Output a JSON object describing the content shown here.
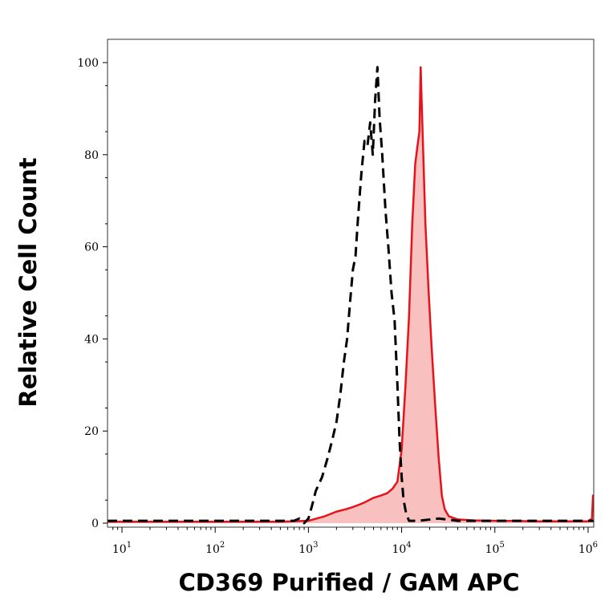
{
  "chart_data": {
    "type": "area",
    "title": "",
    "xlabel": "CD369 Purified / GAM APC",
    "ylabel": "Relative Cell Count",
    "x_scale": "log",
    "xlim": [
      7,
      1150000
    ],
    "ylim": [
      0,
      100
    ],
    "x_ticks": [
      {
        "value": 10,
        "base": "10",
        "exp": "1"
      },
      {
        "value": 100,
        "base": "10",
        "exp": "2"
      },
      {
        "value": 1000,
        "base": "10",
        "exp": "3"
      },
      {
        "value": 10000,
        "base": "10",
        "exp": "4"
      },
      {
        "value": 100000,
        "base": "10",
        "exp": "5"
      },
      {
        "value": 1000000,
        "base": "10",
        "exp": "6"
      }
    ],
    "y_ticks": [
      {
        "value": 0,
        "label": "0"
      },
      {
        "value": 20,
        "label": "20"
      },
      {
        "value": 40,
        "label": "40"
      },
      {
        "value": 60,
        "label": "60"
      },
      {
        "value": 80,
        "label": "80"
      },
      {
        "value": 100,
        "label": "100"
      }
    ],
    "grid": false,
    "legend": "none",
    "series": [
      {
        "style": "dashed",
        "color": "#000000",
        "fill": "none",
        "points": [
          [
            7,
            0.5
          ],
          [
            100,
            0.5
          ],
          [
            700,
            0.5
          ],
          [
            800,
            1
          ],
          [
            900,
            0
          ],
          [
            1000,
            1
          ],
          [
            1100,
            4
          ],
          [
            1200,
            7
          ],
          [
            1400,
            10
          ],
          [
            1600,
            14
          ],
          [
            1800,
            18
          ],
          [
            2000,
            22
          ],
          [
            2200,
            28
          ],
          [
            2400,
            35
          ],
          [
            2600,
            40
          ],
          [
            2800,
            48
          ],
          [
            3000,
            55
          ],
          [
            3200,
            58
          ],
          [
            3400,
            66
          ],
          [
            3700,
            76
          ],
          [
            4000,
            83
          ],
          [
            4300,
            82
          ],
          [
            4600,
            87
          ],
          [
            4900,
            80
          ],
          [
            5200,
            92
          ],
          [
            5500,
            99
          ],
          [
            5800,
            88
          ],
          [
            6200,
            80
          ],
          [
            6700,
            68
          ],
          [
            7200,
            60
          ],
          [
            7800,
            50
          ],
          [
            8400,
            44
          ],
          [
            9000,
            30
          ],
          [
            9500,
            18
          ],
          [
            10000,
            10
          ],
          [
            10500,
            5
          ],
          [
            11200,
            2
          ],
          [
            12000,
            0.5
          ],
          [
            15000,
            0.5
          ],
          [
            25000,
            1
          ],
          [
            40000,
            0.5
          ],
          [
            100000,
            0.5
          ],
          [
            1150000,
            0.5
          ]
        ]
      },
      {
        "style": "solid",
        "color": "#e8121a",
        "fill": "#f9c0c0",
        "points": [
          [
            7,
            0.3
          ],
          [
            500,
            0.3
          ],
          [
            1000,
            0.5
          ],
          [
            1500,
            1.5
          ],
          [
            2000,
            2.5
          ],
          [
            2500,
            3
          ],
          [
            3000,
            3.5
          ],
          [
            3500,
            4
          ],
          [
            4000,
            4.5
          ],
          [
            5000,
            5.5
          ],
          [
            6000,
            6
          ],
          [
            7000,
            6.5
          ],
          [
            8000,
            7.5
          ],
          [
            9000,
            9
          ],
          [
            10000,
            16
          ],
          [
            11000,
            30
          ],
          [
            12000,
            45
          ],
          [
            13000,
            65
          ],
          [
            14000,
            78
          ],
          [
            14800,
            82
          ],
          [
            15500,
            85
          ],
          [
            16000,
            99
          ],
          [
            16500,
            90
          ],
          [
            17200,
            78
          ],
          [
            18000,
            65
          ],
          [
            19500,
            50
          ],
          [
            21000,
            38
          ],
          [
            23000,
            25
          ],
          [
            25000,
            14
          ],
          [
            27000,
            6
          ],
          [
            29000,
            3
          ],
          [
            32000,
            1.5
          ],
          [
            40000,
            0.8
          ],
          [
            60000,
            0.6
          ],
          [
            100000,
            0.5
          ],
          [
            300000,
            0.4
          ],
          [
            1000000,
            0.4
          ],
          [
            1100000,
            1
          ],
          [
            1130000,
            6
          ],
          [
            1150000,
            6
          ]
        ]
      }
    ]
  }
}
